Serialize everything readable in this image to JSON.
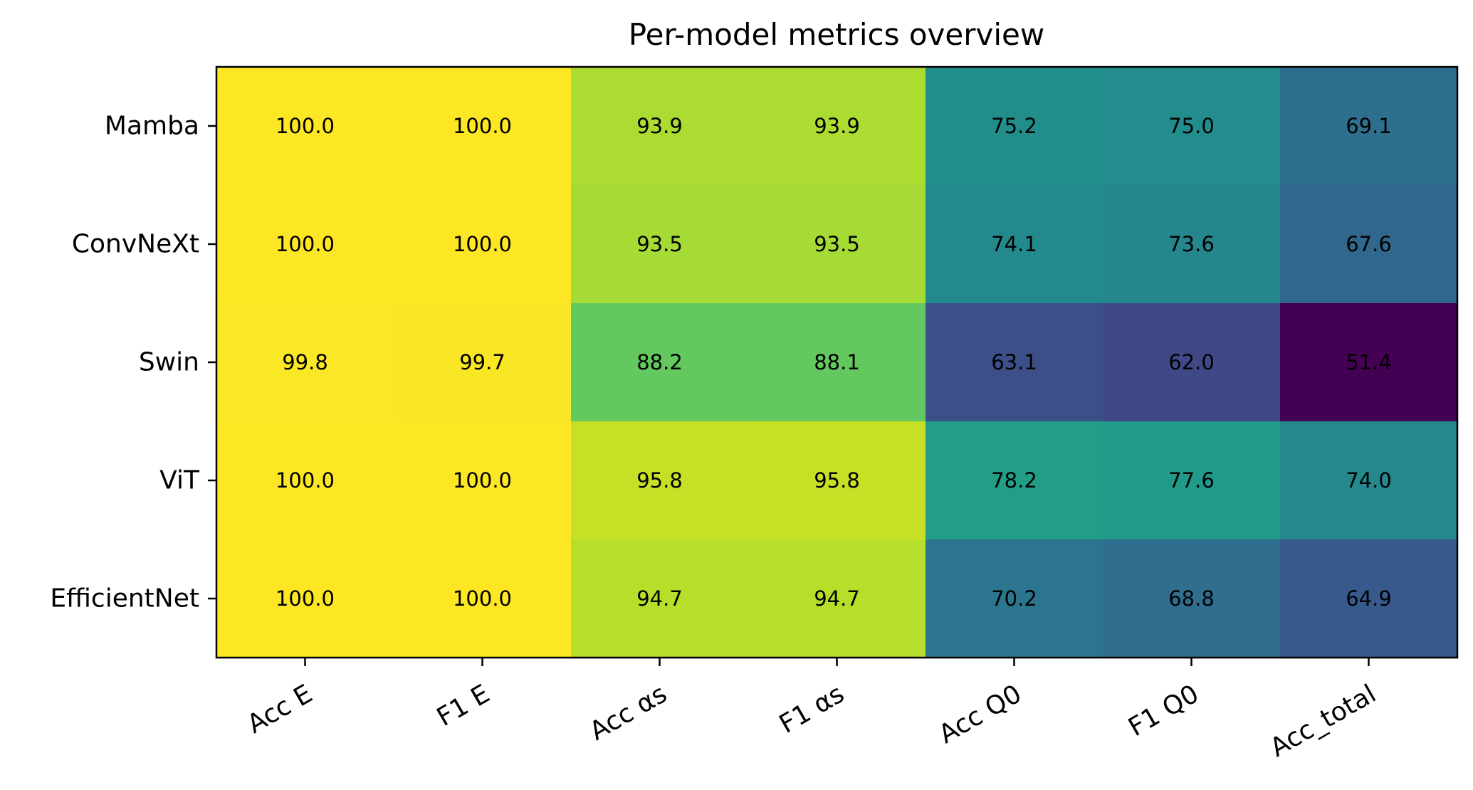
{
  "chart_data": {
    "type": "heatmap",
    "title": "Per-model metrics overview",
    "xlabel": "",
    "ylabel": "",
    "x_categories": [
      "Acc E",
      "F1 E",
      "Acc αs",
      "F1 αs",
      "Acc Q0",
      "F1 Q0",
      "Acc_total"
    ],
    "y_categories": [
      "Mamba",
      "ConvNeXt",
      "Swin",
      "ViT",
      "EfficientNet"
    ],
    "values": [
      [
        100.0,
        100.0,
        93.9,
        93.9,
        75.2,
        75.0,
        69.1
      ],
      [
        100.0,
        100.0,
        93.5,
        93.5,
        74.1,
        73.6,
        67.6
      ],
      [
        99.8,
        99.7,
        88.2,
        88.1,
        63.1,
        62.0,
        51.4
      ],
      [
        100.0,
        100.0,
        95.8,
        95.8,
        78.2,
        77.6,
        74.0
      ],
      [
        100.0,
        100.0,
        94.7,
        94.7,
        70.2,
        68.8,
        64.9
      ]
    ],
    "value_range": [
      51.4,
      100.0
    ],
    "colormap": "viridis",
    "colorbar": false,
    "grid": false,
    "cell_labels": true
  }
}
